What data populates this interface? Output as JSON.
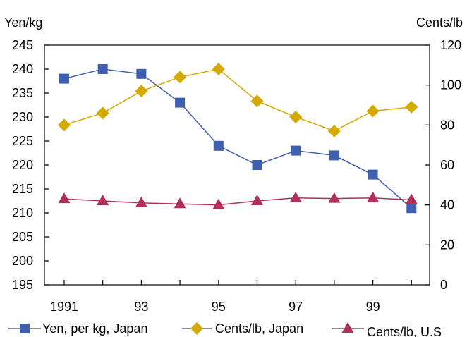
{
  "chart_data": {
    "type": "line",
    "x": [
      1991,
      1992,
      1993,
      1994,
      1995,
      1996,
      1997,
      1998,
      1999,
      2000
    ],
    "x_tick_labels": [
      "1991",
      "",
      "93",
      "",
      "95",
      "",
      "97",
      "",
      "99",
      ""
    ],
    "y_left": {
      "label": "Yen/kg",
      "range": [
        195,
        245
      ],
      "ticks": [
        "195",
        "200",
        "205",
        "210",
        "215",
        "220",
        "225",
        "230",
        "235",
        "240",
        "245"
      ]
    },
    "y_right": {
      "label": "Cents/lb",
      "range": [
        0,
        120
      ],
      "ticks": [
        "0",
        "20",
        "40",
        "60",
        "80",
        "100",
        "120"
      ]
    },
    "series": [
      {
        "name": "Yen, per kg, Japan",
        "axis": "left",
        "color": "#3f5fb0",
        "marker": "square",
        "values": [
          238,
          240,
          239,
          233,
          224,
          220,
          223,
          222,
          218,
          211
        ]
      },
      {
        "name": "Cents/lb, Japan",
        "axis": "right",
        "color": "#d4a900",
        "marker": "diamond",
        "values": [
          80,
          86,
          97,
          104,
          108,
          92,
          84,
          77,
          87,
          89
        ]
      },
      {
        "name": "Cents/lb, U.S",
        "axis": "right",
        "color": "#b0305a",
        "marker": "triangle",
        "values": [
          43,
          42,
          41,
          40.5,
          40,
          42,
          43.5,
          43.2,
          43.5,
          42.5
        ]
      }
    ],
    "grid": false,
    "legend": "bottom"
  }
}
